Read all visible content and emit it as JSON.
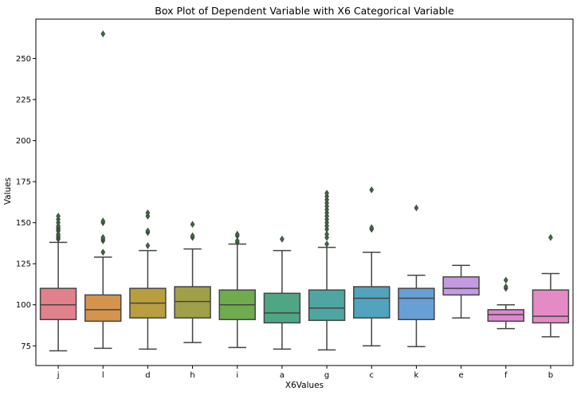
{
  "chart_data": {
    "type": "box",
    "title": "Box Plot of Dependent Variable with X6 Categorical Variable",
    "xlabel": "X6Values",
    "ylabel": "Values",
    "ylim": [
      63,
      274
    ],
    "yticks": [
      75,
      100,
      125,
      150,
      175,
      200,
      225,
      250
    ],
    "grid": false,
    "categories": [
      "j",
      "l",
      "d",
      "h",
      "i",
      "a",
      "g",
      "c",
      "k",
      "e",
      "f",
      "b"
    ],
    "colors": [
      "#e1818c",
      "#d5944d",
      "#b89e3f",
      "#9fa047",
      "#6fab4f",
      "#4ea684",
      "#4fa5a1",
      "#52a3bd",
      "#66a0d4",
      "#c49be2",
      "#df85d2",
      "#e48ac5"
    ],
    "boxes": [
      {
        "category": "j",
        "whisker_low": 72,
        "q1": 91,
        "median": 100,
        "q3": 110,
        "whisker_high": 138,
        "outliers": [
          140,
          141,
          142,
          143,
          145,
          146,
          147,
          148,
          150,
          152,
          154
        ]
      },
      {
        "category": "l",
        "whisker_low": 73.5,
        "q1": 90,
        "median": 97,
        "q3": 106,
        "whisker_high": 129,
        "outliers": [
          132,
          139,
          140,
          141,
          150,
          151,
          265
        ]
      },
      {
        "category": "d",
        "whisker_low": 73,
        "q1": 92,
        "median": 101,
        "q3": 110,
        "whisker_high": 133,
        "outliers": [
          136,
          144,
          145,
          154,
          156
        ]
      },
      {
        "category": "h",
        "whisker_low": 77,
        "q1": 92,
        "median": 102,
        "q3": 111,
        "whisker_high": 134,
        "outliers": [
          141,
          142,
          149
        ]
      },
      {
        "category": "i",
        "whisker_low": 74,
        "q1": 91,
        "median": 100,
        "q3": 109,
        "whisker_high": 137,
        "outliers": [
          138,
          139,
          142,
          143
        ]
      },
      {
        "category": "a",
        "whisker_low": 73,
        "q1": 89,
        "median": 95,
        "q3": 107,
        "whisker_high": 133,
        "outliers": [
          140
        ]
      },
      {
        "category": "g",
        "whisker_low": 72.5,
        "q1": 90.5,
        "median": 98,
        "q3": 109,
        "whisker_high": 135,
        "outliers": [
          137,
          141,
          143,
          146,
          148,
          150,
          152,
          154,
          156,
          158,
          160,
          162,
          164,
          166,
          168
        ]
      },
      {
        "category": "c",
        "whisker_low": 75,
        "q1": 92,
        "median": 104,
        "q3": 111,
        "whisker_high": 132,
        "outliers": [
          146,
          147,
          170
        ]
      },
      {
        "category": "k",
        "whisker_low": 74.5,
        "q1": 91,
        "median": 104,
        "q3": 110,
        "whisker_high": 118,
        "outliers": [
          159
        ]
      },
      {
        "category": "e",
        "whisker_low": 92,
        "q1": 106,
        "median": 110,
        "q3": 117,
        "whisker_high": 124,
        "outliers": []
      },
      {
        "category": "f",
        "whisker_low": 85.5,
        "q1": 90,
        "median": 94,
        "q3": 97,
        "whisker_high": 100,
        "outliers": [
          110,
          111,
          115
        ]
      },
      {
        "category": "b",
        "whisker_low": 80.5,
        "q1": 89,
        "median": 93,
        "q3": 109,
        "whisker_high": 119,
        "outliers": [
          141
        ]
      }
    ]
  }
}
